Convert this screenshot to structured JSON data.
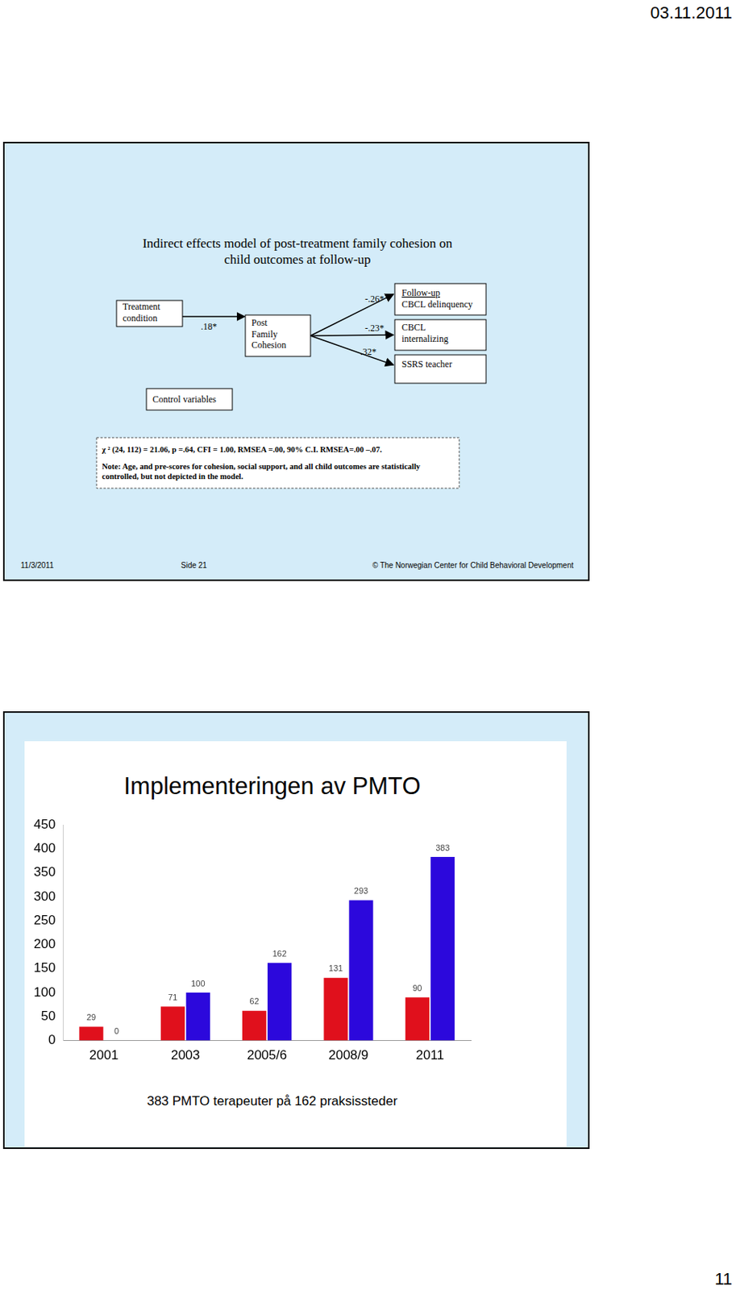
{
  "header": {
    "date": "03.11.2011",
    "page_number": "11"
  },
  "slide1": {
    "title": [
      "Indirect effects model of post-treatment family cohesion on",
      "child outcomes at follow-up"
    ],
    "nodes": [
      {
        "label": [
          "Treatment",
          "condition"
        ]
      },
      {
        "label": [
          "Post",
          "Family",
          "Cohesion"
        ]
      },
      {
        "label": [
          "Follow-up",
          "CBCL delinquency"
        ]
      },
      {
        "label": [
          "CBCL",
          "internalizing"
        ]
      },
      {
        "label": [
          "SSRS teacher"
        ]
      },
      {
        "label": [
          "Control variables"
        ]
      }
    ],
    "edges": [
      {
        "from": 0,
        "to": 1,
        "label": ".18*"
      },
      {
        "from": 1,
        "to": 2,
        "label": "-.26*"
      },
      {
        "from": 1,
        "to": 3,
        "label": "-.23*"
      },
      {
        "from": 1,
        "to": 4,
        "label": ".32*"
      }
    ],
    "fit": "χ ² (24, 112) = 21.06, p =.64, CFI = 1.00, RMSEA =.00,  90% C.I. RMSEA=.00 –.07.",
    "note": [
      "Note: Age, and pre-scores for cohesion, social support, and all child outcomes are statistically",
      "controlled, but not depicted in the model."
    ],
    "footer": {
      "date": "11/3/2011",
      "slide": "Side 21",
      "copyright": "© The Norwegian Center for Child Behavioral Development"
    }
  },
  "slide2": {
    "caption": "383 PMTO terapeuter på 162 praksissteder"
  },
  "chart_data": {
    "type": "bar",
    "title": "Implementeringen av PMTO",
    "categories": [
      "2001",
      "2003",
      "2005/6",
      "2008/9",
      "2011"
    ],
    "series": [
      {
        "color": "#e0101c",
        "values": [
          29,
          71,
          62,
          131,
          90
        ]
      },
      {
        "color": "#2c08dc",
        "values": [
          0,
          100,
          162,
          293,
          383
        ]
      }
    ],
    "ylim": [
      0,
      450
    ],
    "yticks": [
      0,
      50,
      100,
      150,
      200,
      250,
      300,
      350,
      400,
      450
    ],
    "grid": false,
    "data_labels": true
  }
}
